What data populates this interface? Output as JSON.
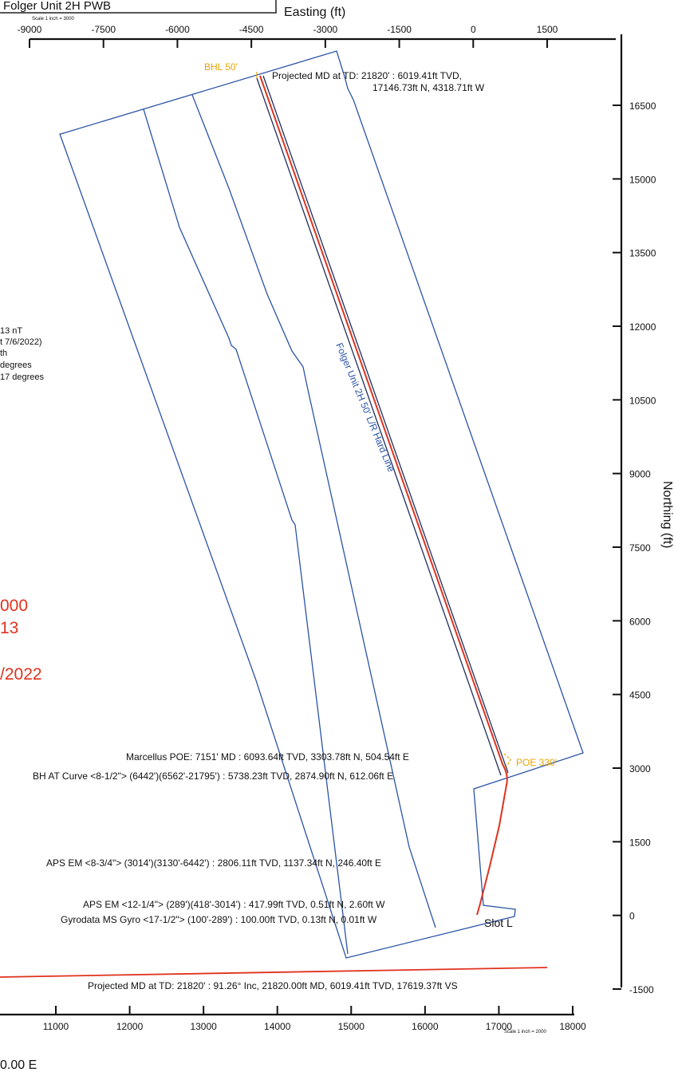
{
  "header": {
    "plan_title": "Folger Unit 2H PWB",
    "scale_top": "Scale 1 inch = 3000",
    "scale_bottom": "Scale 1 inch = 2000"
  },
  "axes": {
    "easting_title": "Easting (ft)",
    "northing_title": "Northing (ft)",
    "easting_ticks": [
      "-9000",
      "-7500",
      "-6000",
      "-4500",
      "-3000",
      "-1500",
      "0",
      "1500"
    ],
    "northing_ticks": [
      "16500",
      "15000",
      "13500",
      "12000",
      "10500",
      "9000",
      "7500",
      "6000",
      "4500",
      "3000",
      "1500",
      "0",
      "-1500"
    ],
    "vs_ticks": [
      "11000",
      "12000",
      "13000",
      "14000",
      "15000",
      "16000",
      "17000",
      "18000"
    ]
  },
  "annotations": {
    "bhl": "BHL  50'",
    "poe": "POE  330'",
    "hard_line": "Folger Unit 2H 50' L/R Hard Line",
    "projected_td_1": "Projected MD at TD: 21820' : 6019.41ft TVD,",
    "projected_td_2": "17146.73ft N, 4318.71ft W",
    "marcellus": "Marcellus POE: 7151' MD : 6093.64ft TVD, 3303.78ft N, 504.54ft E",
    "bh_curve": "BH AT Curve <8-1/2\"> (6442')(6562'-21795') : 5738.23ft TVD, 2874.90ft N, 612.06ft E",
    "aps_834": "APS EM <8-3/4\"> (3014')(3130'-6442') : 2806.11ft TVD, 1137.34ft N, 246.40ft E",
    "aps_1214": "APS EM <12-1/4\"> (289')(418'-3014') : 417.99ft TVD, 0.51ft N, 2.60ft W",
    "gyro": "Gyrodata MS Gyro <17-1/2\"> (100'-289') : 100.00ft TVD, 0.13ft N, 0.01ft W",
    "slot": "Slot L",
    "projected_vs": "Projected MD at TD: 21820' : 91.26° Inc, 21820.00ft MD, 6019.41ft TVD, 17619.37ft VS",
    "bottom_partial": "0.00 E"
  },
  "left_partial": {
    "magnetic": [
      "13 nT",
      "t 7/6/2022)",
      "th",
      " degrees",
      "17 degrees"
    ],
    "red": [
      "000",
      "13",
      "/2022"
    ]
  },
  "colors": {
    "lease": "#2b53a6",
    "well": "#e0321e",
    "hardline": "#1e2f5e",
    "setback": "#e7a400",
    "axis": "#111111"
  }
}
